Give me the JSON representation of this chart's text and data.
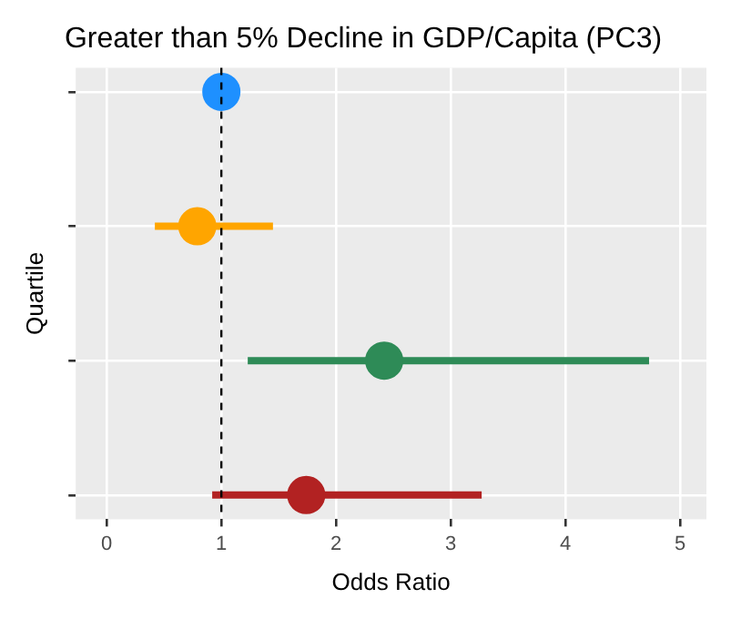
{
  "chart_data": {
    "type": "scatter",
    "title": "Greater than 5% Decline in GDP/Capita (PC3)",
    "xlabel": "Odds Ratio",
    "ylabel": "Quartile",
    "orientation": "horizontal",
    "categories": [
      null,
      null,
      null,
      null
    ],
    "values": [
      1.0,
      0.79,
      2.42,
      1.74
    ],
    "errors": [
      null,
      [
        0.42,
        1.45
      ],
      [
        1.23,
        4.73
      ],
      [
        0.92,
        3.27
      ]
    ],
    "colors": [
      "#1e90ff",
      "#ffa500",
      "#2e8b57",
      "#b22222"
    ],
    "xlim": [
      -0.27,
      5.23
    ],
    "xticks": [
      0,
      1,
      2,
      3,
      4,
      5
    ],
    "ref_lines": [
      {
        "axis": "x",
        "value": 1,
        "color": "#000000",
        "line_style": "dashed"
      }
    ],
    "grid": true,
    "legend": false,
    "marker": "circle",
    "tick_labels": "x"
  }
}
